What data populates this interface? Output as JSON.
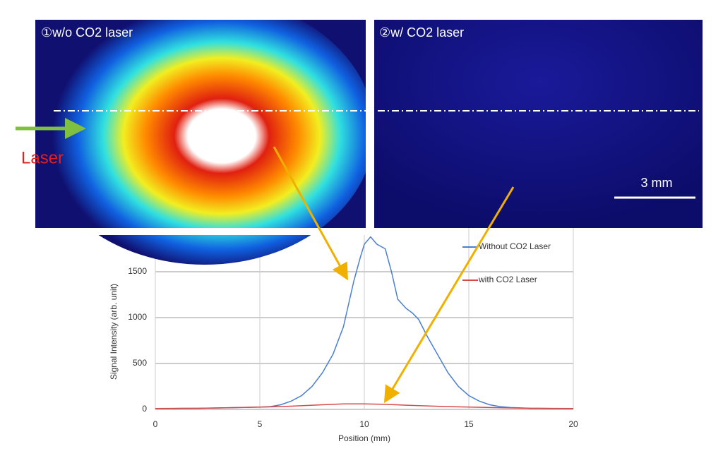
{
  "images": [
    {
      "label": "①w/o CO2 laser"
    },
    {
      "label": "②w/ CO2 laser",
      "scale_bar": "3 mm"
    }
  ],
  "laser_label": "Laser",
  "chart_data": {
    "type": "line",
    "x_label": "Position (mm)",
    "y_label": "Signal Intensity (arb. unit)",
    "xlim": [
      0,
      20
    ],
    "xticks": [
      0,
      5,
      10,
      15,
      20
    ],
    "ylim": [
      0,
      2000
    ],
    "yticks": [
      0,
      500,
      1000,
      1500
    ],
    "grid": true,
    "legend": "upper-right",
    "series": [
      {
        "name": "Without CO2 Laser",
        "color": "#4a7fd0",
        "x": [
          0,
          1,
          2,
          3,
          4,
          5,
          5.5,
          6,
          6.5,
          7,
          7.5,
          8,
          8.5,
          9,
          9.3,
          9.5,
          9.8,
          10,
          10.3,
          10.6,
          11,
          11.3,
          11.6,
          12,
          12.3,
          12.6,
          13,
          13.5,
          14,
          14.5,
          15,
          15.5,
          16,
          16.5,
          17,
          18,
          19,
          20
        ],
        "values": [
          10,
          10,
          12,
          15,
          20,
          25,
          30,
          50,
          90,
          150,
          250,
          400,
          600,
          900,
          1200,
          1400,
          1650,
          1800,
          1880,
          1800,
          1750,
          1500,
          1200,
          1100,
          1050,
          980,
          800,
          600,
          400,
          250,
          150,
          90,
          50,
          30,
          20,
          12,
          10,
          8
        ]
      },
      {
        "name": "with CO2 Laser",
        "color": "#d84a4a",
        "x": [
          0,
          2,
          4,
          6,
          8,
          9,
          10,
          11,
          12,
          14,
          16,
          18,
          20
        ],
        "values": [
          10,
          12,
          20,
          30,
          50,
          60,
          60,
          55,
          45,
          30,
          20,
          12,
          10
        ]
      }
    ]
  }
}
